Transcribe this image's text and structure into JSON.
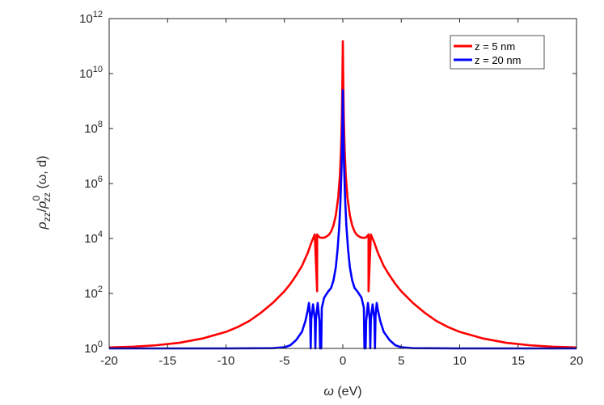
{
  "chart_data": {
    "type": "line",
    "title": "",
    "xlabel": "ω (eV)",
    "ylabel": "ρ_zz / ρ_zz^0 (ω, d)",
    "ylabel_parts": {
      "rho": "ρ",
      "zz": "zz",
      "slash": "/",
      "zero": "0",
      "tail": " (ω, d)"
    },
    "xlabel_parts": {
      "omega": "ω",
      "unit": " (eV)"
    },
    "xlim": [
      -20,
      20
    ],
    "yscale": "log",
    "ylim": [
      1,
      1000000000000.0
    ],
    "x_ticks": [
      -20,
      -15,
      -10,
      -5,
      0,
      5,
      10,
      15,
      20
    ],
    "x_tick_labels": [
      "-20",
      "-15",
      "-10",
      "-5",
      "0",
      "5",
      "10",
      "15",
      "20"
    ],
    "y_ticks": [
      1,
      100,
      10000,
      1000000,
      100000000,
      10000000000,
      1000000000000
    ],
    "y_tick_labels": [
      {
        "base": "10",
        "exp": "0"
      },
      {
        "base": "10",
        "exp": "2"
      },
      {
        "base": "10",
        "exp": "4"
      },
      {
        "base": "10",
        "exp": "6"
      },
      {
        "base": "10",
        "exp": "8"
      },
      {
        "base": "10",
        "exp": "10"
      },
      {
        "base": "10",
        "exp": "12"
      }
    ],
    "legend_position": "top-right",
    "series": [
      {
        "name": "z = 5 nm",
        "color": "#ff0000",
        "points": [
          [
            -20,
            1.08
          ],
          [
            -18,
            1.15
          ],
          [
            -16,
            1.3
          ],
          [
            -14,
            1.6
          ],
          [
            -12,
            2.3
          ],
          [
            -10,
            4
          ],
          [
            -9,
            6
          ],
          [
            -8,
            10
          ],
          [
            -7,
            20
          ],
          [
            -6,
            45
          ],
          [
            -5,
            120
          ],
          [
            -4.5,
            220
          ],
          [
            -4,
            450
          ],
          [
            -3.5,
            1000
          ],
          [
            -3,
            3000
          ],
          [
            -2.7,
            7000
          ],
          [
            -2.4,
            14000
          ],
          [
            -2.2,
            120
          ],
          [
            -2.2,
            14000
          ],
          [
            -2.0,
            11000
          ],
          [
            -1.8,
            10500
          ],
          [
            -1.5,
            11000
          ],
          [
            -1.2,
            13500
          ],
          [
            -1.0,
            18000
          ],
          [
            -0.8,
            30000
          ],
          [
            -0.6,
            70000
          ],
          [
            -0.4,
            300000
          ],
          [
            -0.25,
            2000000
          ],
          [
            -0.15,
            20000000
          ],
          [
            -0.08,
            300000000
          ],
          [
            -0.03,
            10000000000
          ],
          [
            0,
            150000000000
          ],
          [
            0.03,
            10000000000
          ],
          [
            0.08,
            300000000
          ],
          [
            0.15,
            20000000
          ],
          [
            0.25,
            2000000
          ],
          [
            0.4,
            300000
          ],
          [
            0.6,
            70000
          ],
          [
            0.8,
            30000
          ],
          [
            1.0,
            18000
          ],
          [
            1.2,
            13500
          ],
          [
            1.5,
            11000
          ],
          [
            1.8,
            10500
          ],
          [
            2.0,
            11000
          ],
          [
            2.2,
            14000
          ],
          [
            2.2,
            120
          ],
          [
            2.4,
            14000
          ],
          [
            2.7,
            7000
          ],
          [
            3,
            3000
          ],
          [
            3.5,
            1000
          ],
          [
            4,
            450
          ],
          [
            4.5,
            220
          ],
          [
            5,
            120
          ],
          [
            6,
            45
          ],
          [
            7,
            20
          ],
          [
            8,
            10
          ],
          [
            9,
            6
          ],
          [
            10,
            4
          ],
          [
            12,
            2.3
          ],
          [
            14,
            1.6
          ],
          [
            16,
            1.3
          ],
          [
            18,
            1.15
          ],
          [
            20,
            1.08
          ]
        ]
      },
      {
        "name": "z = 20 nm",
        "color": "#0000ff",
        "points": [
          [
            -20,
            1
          ],
          [
            -10,
            1
          ],
          [
            -6,
            1.02
          ],
          [
            -5,
            1.1
          ],
          [
            -4.5,
            1.3
          ],
          [
            -4,
            2
          ],
          [
            -3.5,
            4
          ],
          [
            -3.2,
            10
          ],
          [
            -3.0,
            25
          ],
          [
            -2.9,
            45
          ],
          [
            -2.8,
            15
          ],
          [
            -2.75,
            1
          ],
          [
            -2.7,
            12
          ],
          [
            -2.55,
            40
          ],
          [
            -2.4,
            12
          ],
          [
            -2.35,
            1
          ],
          [
            -2.3,
            12
          ],
          [
            -2.15,
            45
          ],
          [
            -2.0,
            10
          ],
          [
            -1.95,
            1
          ],
          [
            -1.85,
            1
          ],
          [
            -1.8,
            30
          ],
          [
            -1.6,
            70
          ],
          [
            -1.3,
            110
          ],
          [
            -1.0,
            160
          ],
          [
            -0.8,
            300
          ],
          [
            -0.6,
            900
          ],
          [
            -0.45,
            4000
          ],
          [
            -0.3,
            30000
          ],
          [
            -0.2,
            250000
          ],
          [
            -0.1,
            5000000
          ],
          [
            -0.04,
            100000000
          ],
          [
            0,
            2500000000
          ],
          [
            0.04,
            100000000
          ],
          [
            0.1,
            5000000
          ],
          [
            0.2,
            250000
          ],
          [
            0.3,
            30000
          ],
          [
            0.45,
            4000
          ],
          [
            0.6,
            900
          ],
          [
            0.8,
            300
          ],
          [
            1.0,
            160
          ],
          [
            1.3,
            110
          ],
          [
            1.6,
            70
          ],
          [
            1.8,
            30
          ],
          [
            1.85,
            1
          ],
          [
            1.95,
            1
          ],
          [
            2.0,
            10
          ],
          [
            2.15,
            45
          ],
          [
            2.3,
            12
          ],
          [
            2.35,
            1
          ],
          [
            2.4,
            12
          ],
          [
            2.55,
            40
          ],
          [
            2.7,
            12
          ],
          [
            2.75,
            1
          ],
          [
            2.8,
            15
          ],
          [
            2.9,
            45
          ],
          [
            3.0,
            25
          ],
          [
            3.2,
            10
          ],
          [
            3.5,
            4
          ],
          [
            4,
            2
          ],
          [
            4.5,
            1.3
          ],
          [
            5,
            1.1
          ],
          [
            6,
            1.02
          ],
          [
            10,
            1
          ],
          [
            20,
            1
          ]
        ]
      }
    ]
  }
}
